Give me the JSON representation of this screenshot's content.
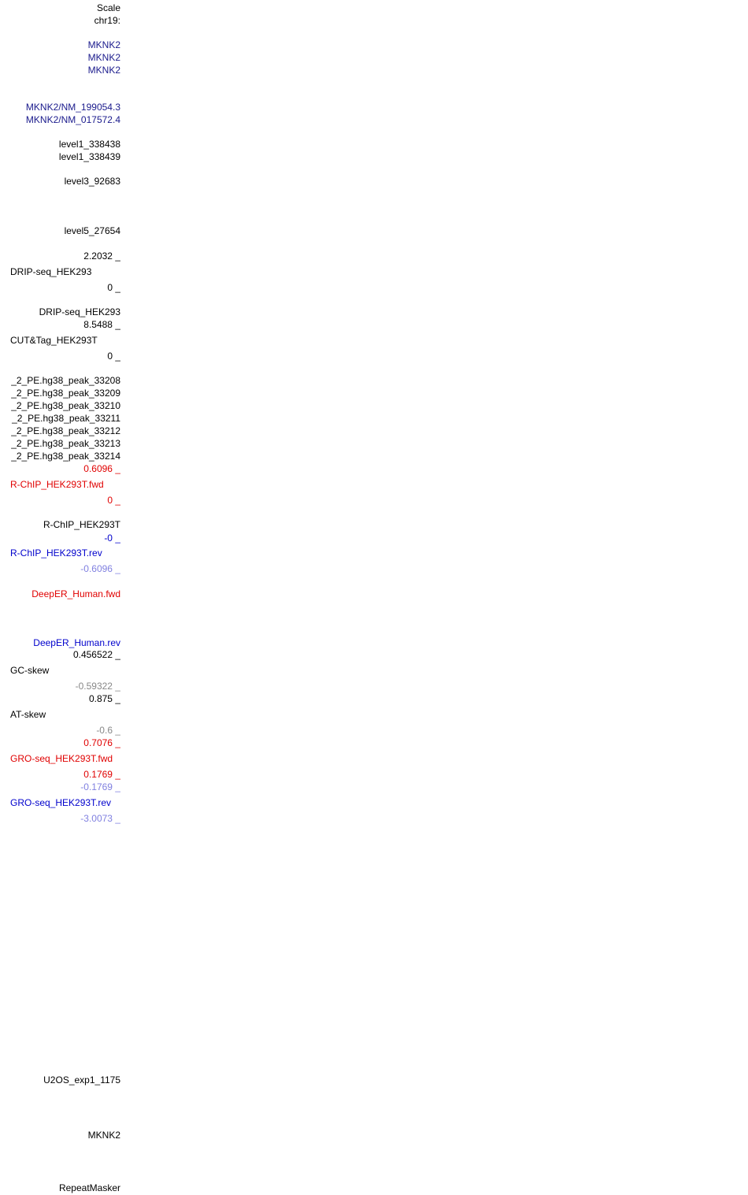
{
  "labels": [
    "Scale",
    "chr19:",
    "MKNK2",
    "MKNK2",
    "MKNK2",
    "MKNK2/NM_199054.3",
    "MKNK2/NM_017572.4",
    "level1_338438",
    "level1_338439",
    "level3_92683",
    "level5_27654",
    "2.2032 _",
    "DRIP-seq_HEK293",
    "0 _",
    "DRIP-seq_HEK293",
    "8.5488 _",
    "CUT&Tag_HEK293T",
    "0 _",
    "_2_PE.hg38_peak_33208",
    "_2_PE.hg38_peak_33209",
    "_2_PE.hg38_peak_33210",
    "_2_PE.hg38_peak_33211",
    "_2_PE.hg38_peak_33212",
    "_2_PE.hg38_peak_33213",
    "_2_PE.hg38_peak_33214",
    "0.6096 _",
    "R-ChIP_HEK293T.fwd",
    "0 _",
    "R-ChIP_HEK293T",
    "-0 _",
    "R-ChIP_HEK293T.rev",
    "-0.6096 _",
    "DeepER_Human.fwd",
    "DeepER_Human.rev",
    "0.456522 _",
    "GC-skew",
    "-0.59322 _",
    "0.875 _",
    "AT-skew",
    "-0.6 _",
    "0.7076 _",
    "GRO-seq_HEK293T.fwd",
    "0.1769 _",
    "-0.1769 _",
    "GRO-seq_HEK293T.rev",
    "-3.0073 _",
    "U2OS_exp1_1175",
    "MKNK2",
    "RepeatMasker"
  ]
}
